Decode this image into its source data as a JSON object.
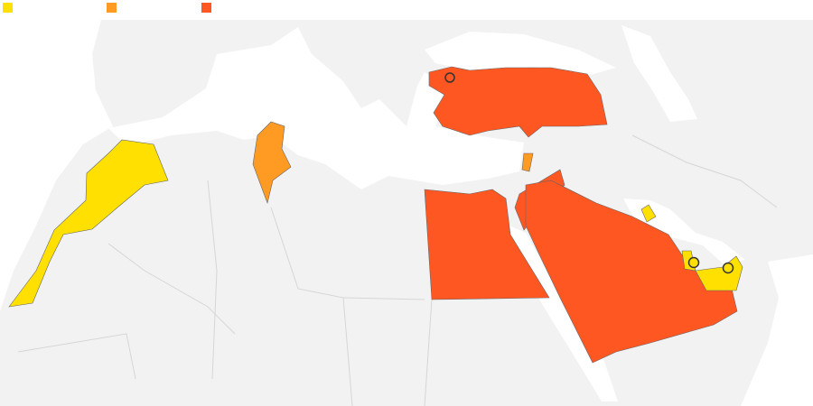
{
  "legend": {
    "items": [
      {
        "color": "#FFE000"
      },
      {
        "color": "#FF9A22"
      },
      {
        "color": "#FF5722"
      }
    ]
  },
  "colors": {
    "land": "#F2F2F2",
    "sea": "#FFFFFF",
    "border": "#D6D6D6",
    "category_1": "#FFE000",
    "category_2": "#FF9A22",
    "category_3": "#FF5722"
  },
  "markers": [
    {
      "category": 3
    },
    {
      "category": 1
    },
    {
      "category": 1
    }
  ]
}
